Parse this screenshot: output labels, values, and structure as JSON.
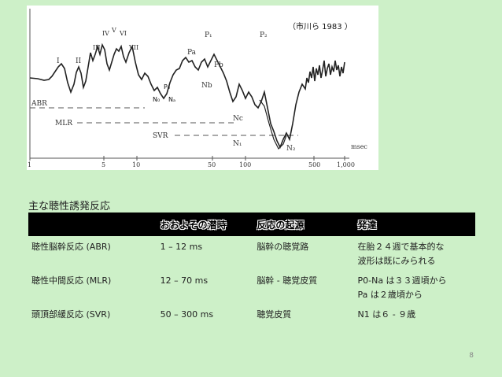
{
  "figure": {
    "citation": "（市川ら 1983 ）",
    "wave_labels": [
      "I",
      "II",
      "III",
      "IV",
      "V",
      "VI",
      "VII",
      "P₀",
      "N₀",
      "Nₐ",
      "Pa",
      "Nb",
      "Pb",
      "P₁",
      "P₂",
      "Nc",
      "N₁",
      "N₂"
    ],
    "range_labels": {
      "abr": "ABR",
      "mlr": "MLR",
      "svr": "SVR"
    },
    "x_unit": "msec",
    "x_ticks": [
      "1",
      "5",
      "10",
      "50",
      "100",
      "500",
      "1,000"
    ]
  },
  "section_title": "主な聴性誘発反応",
  "table": {
    "headers": [
      "",
      "おおよその潜時",
      "反応の起源",
      "発達"
    ],
    "rows": [
      {
        "name": "聴性脳幹反応 (ABR)",
        "latency": "1 – 12 ms",
        "origin": "脳幹の聴覚路",
        "development": [
          "在胎２４週で基本的な",
          "波形は既にみられる"
        ]
      },
      {
        "name": "聴性中間反応 (MLR)",
        "latency": "12 – 70 ms",
        "origin": "脳幹 - 聴覚皮質",
        "development": [
          "P0-Na は３３週頃から",
          "Pa は２歳頃から"
        ]
      },
      {
        "name": "頭頂部緩反応 (SVR)",
        "latency": "50 – 300 ms",
        "origin": "聴覚皮質",
        "development": [
          "N1 は６ - ９歳"
        ]
      }
    ]
  },
  "page_number": "8"
}
